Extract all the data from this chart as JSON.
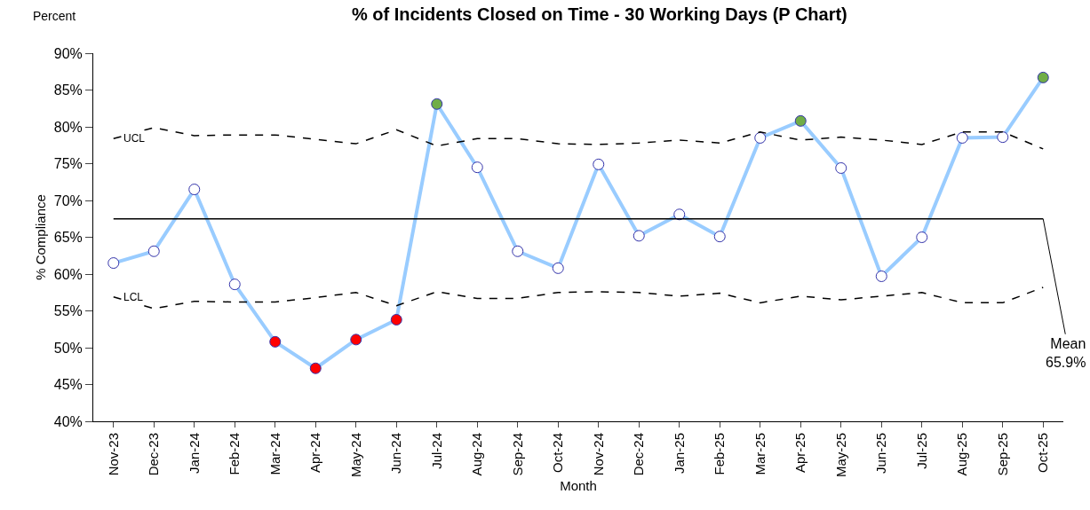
{
  "chart_data": {
    "type": "line",
    "title": "% of Incidents Closed on Time - 30 Working Days (P Chart)",
    "xlabel": "Month",
    "ylabel": "% Compliance",
    "annotations": [
      "Percent"
    ],
    "categories": [
      "Nov-23",
      "Dec-23",
      "Jan-24",
      "Feb-24",
      "Mar-24",
      "Apr-24",
      "May-24",
      "Jun-24",
      "Jul-24",
      "Aug-24",
      "Sep-24",
      "Oct-24",
      "Nov-24",
      "Dec-24",
      "Jan-25",
      "Feb-25",
      "Mar-25",
      "Apr-25",
      "May-25",
      "Jun-25",
      "Jul-25",
      "Aug-25",
      "Sep-25",
      "Oct-25"
    ],
    "series": [
      {
        "color": "#99ccff",
        "marker": "circle",
        "line_style": "solid",
        "colors": [
          "#ffffff",
          "#ffffff",
          "#ffffff",
          "#ffffff",
          "#ff0000",
          "#ff0000",
          "#ff0000",
          "#ff0000",
          "#70ad47",
          "#ffffff",
          "#ffffff",
          "#ffffff",
          "#ffffff",
          "#ffffff",
          "#ffffff",
          "#ffffff",
          "#ffffff",
          "#70ad47",
          "#ffffff",
          "#ffffff",
          "#ffffff",
          "#ffffff",
          "#ffffff",
          "#70ad47"
        ],
        "values": [
          61.5,
          63.1,
          71.5,
          58.6,
          50.8,
          47.2,
          51.1,
          53.8,
          83.1,
          74.5,
          63.1,
          60.8,
          74.9,
          65.2,
          68.1,
          65.1,
          78.5,
          80.8,
          74.4,
          59.7,
          65.0,
          78.5,
          78.6,
          86.7
        ]
      },
      {
        "name": "UCL",
        "color": "#000000",
        "marker": "none",
        "line_style": "dashed",
        "values": [
          78.4,
          79.9,
          78.8,
          78.9,
          78.9,
          78.3,
          77.7,
          79.6,
          77.4,
          78.4,
          78.4,
          77.7,
          77.6,
          77.8,
          78.2,
          77.8,
          79.3,
          78.2,
          78.6,
          78.2,
          77.6,
          79.3,
          79.3,
          77.0
        ]
      },
      {
        "name": "LCL",
        "color": "#000000",
        "marker": "none",
        "line_style": "dashed",
        "values": [
          56.9,
          55.3,
          56.3,
          56.2,
          56.2,
          56.8,
          57.5,
          55.7,
          57.6,
          56.7,
          56.7,
          57.5,
          57.6,
          57.5,
          57.0,
          57.4,
          56.1,
          57.0,
          56.5,
          57.0,
          57.5,
          56.1,
          56.1,
          58.2
        ]
      }
    ],
    "ref_lines": [
      {
        "axis": "y",
        "value": 67.5,
        "label": "Mean\n65.9%",
        "color": "#000000",
        "line_style": "solid"
      }
    ],
    "ylim": [
      40,
      90
    ],
    "yticks": [
      {
        "value": 40,
        "label": "40%"
      },
      {
        "value": 45,
        "label": "45%"
      },
      {
        "value": 50,
        "label": "50%"
      },
      {
        "value": 55,
        "label": "55%"
      },
      {
        "value": 60,
        "label": "60%"
      },
      {
        "value": 65,
        "label": "65%"
      },
      {
        "value": 70,
        "label": "70%"
      },
      {
        "value": 75,
        "label": "75%"
      },
      {
        "value": 80,
        "label": "80%"
      },
      {
        "value": 85,
        "label": "85%"
      },
      {
        "value": 90,
        "label": "90%"
      }
    ]
  }
}
